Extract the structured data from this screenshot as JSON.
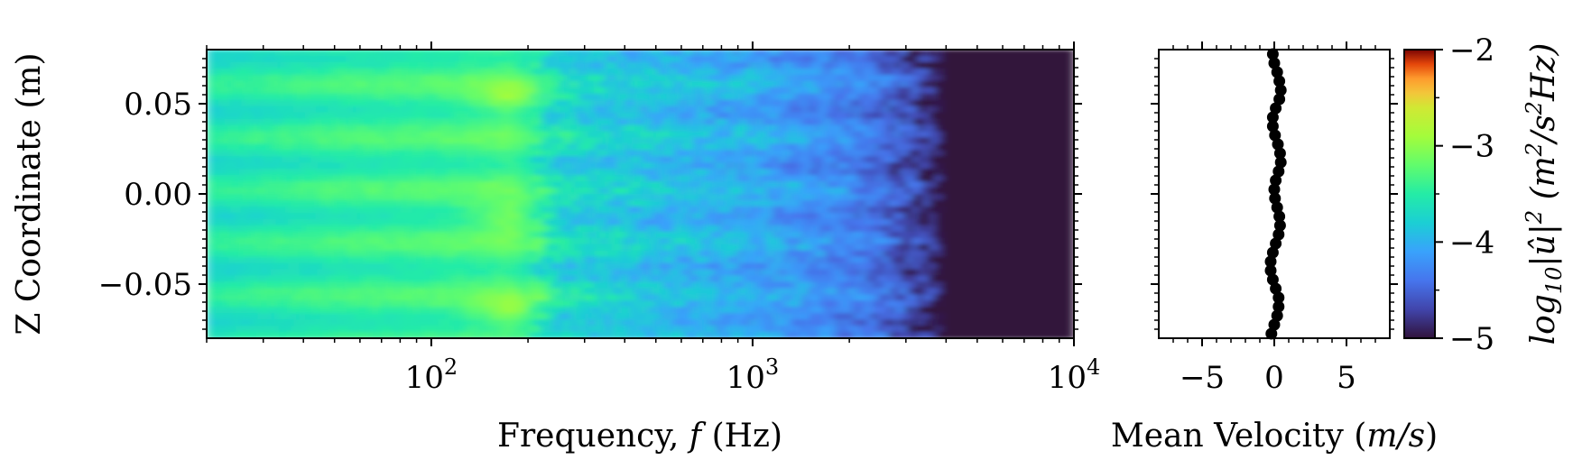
{
  "chart_data": [
    {
      "type": "heatmap",
      "xlabel": "Frequency, f (Hz)",
      "ylabel": "Z Coordinate (m)",
      "x_scale": "log",
      "xlim": [
        20,
        10000
      ],
      "ylim": [
        -0.08,
        0.08
      ],
      "x_ticks": [
        100,
        1000,
        10000
      ],
      "x_tick_labels": [
        {
          "base": "10",
          "exp": "2"
        },
        {
          "base": "10",
          "exp": "3"
        },
        {
          "base": "10",
          "exp": "4"
        }
      ],
      "y_ticks": [
        -0.05,
        0.0,
        0.05
      ],
      "y_tick_labels": [
        "−0.05",
        "0.00",
        "0.05"
      ],
      "colormap": "turbo",
      "value_range": [
        -5,
        -2
      ],
      "value_profile": [
        {
          "f": 20,
          "level": -3.6
        },
        {
          "f": 50,
          "level": -3.45
        },
        {
          "f": 100,
          "level": -3.4
        },
        {
          "f": 180,
          "level": -3.3
        },
        {
          "f": 250,
          "level": -3.7
        },
        {
          "f": 500,
          "level": -3.9
        },
        {
          "f": 1000,
          "level": -4.05
        },
        {
          "f": 2000,
          "level": -4.3
        },
        {
          "f": 3000,
          "level": -4.6
        },
        {
          "f": 4000,
          "level": -5.0
        },
        {
          "f": 10000,
          "level": -5.0
        }
      ],
      "hotspots_z": [
        0.053,
        -0.013,
        -0.065
      ]
    },
    {
      "type": "scatter",
      "xlabel_parts": {
        "pre": "Mean Velocity (",
        "italic": "m/s",
        "post": ")"
      },
      "xlim": [
        -8,
        8
      ],
      "ylim": [
        -0.08,
        0.08
      ],
      "x_ticks": [
        -5,
        0,
        5
      ],
      "x_tick_labels": [
        "−5",
        "0",
        "5"
      ],
      "marker_color": "#000000",
      "z": [
        -0.0775,
        -0.0725,
        -0.0675,
        -0.0625,
        -0.0575,
        -0.0525,
        -0.0475,
        -0.0425,
        -0.0375,
        -0.0325,
        -0.0275,
        -0.0225,
        -0.0175,
        -0.0125,
        -0.0075,
        -0.0025,
        0.0025,
        0.0075,
        0.0125,
        0.0175,
        0.0225,
        0.0275,
        0.0325,
        0.0375,
        0.0425,
        0.0475,
        0.0525,
        0.0575,
        0.0625,
        0.0675,
        0.0725,
        0.0775
      ],
      "velocity": [
        -0.2,
        0.0,
        0.2,
        0.3,
        0.3,
        0.1,
        -0.1,
        -0.25,
        -0.25,
        -0.1,
        0.1,
        0.3,
        0.4,
        0.35,
        0.2,
        0.05,
        0.0,
        0.1,
        0.3,
        0.45,
        0.4,
        0.25,
        0.05,
        -0.1,
        -0.1,
        0.1,
        0.35,
        0.45,
        0.35,
        0.2,
        0.0,
        -0.1
      ]
    }
  ],
  "colorbar": {
    "ticks": [
      -2,
      -3,
      -4,
      -5
    ],
    "tick_labels": [
      "−2",
      "−3",
      "−4",
      "−5"
    ],
    "label_parts": {
      "pre": "log",
      "sub": "10",
      "mid": "|û|",
      "sup": "2",
      "unit_open": " (m",
      "unit_sup1": "2",
      "unit_mid": "/s",
      "unit_sup2": "2",
      "unit_end": "Hz)"
    }
  }
}
